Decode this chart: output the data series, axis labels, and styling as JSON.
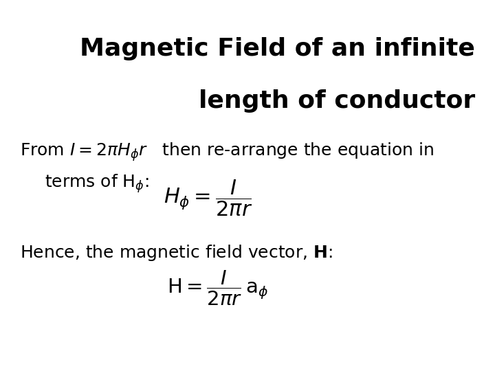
{
  "background_color": "#ffffff",
  "text_color": "#000000",
  "highlight_color": "#ddb8e8",
  "title_line1": "Magnetic Field of an infinite",
  "title_line2": "length of conductor",
  "title_fontsize": 26,
  "body_fontsize": 18,
  "formula1_fontsize": 20,
  "formula2_fontsize": 19
}
